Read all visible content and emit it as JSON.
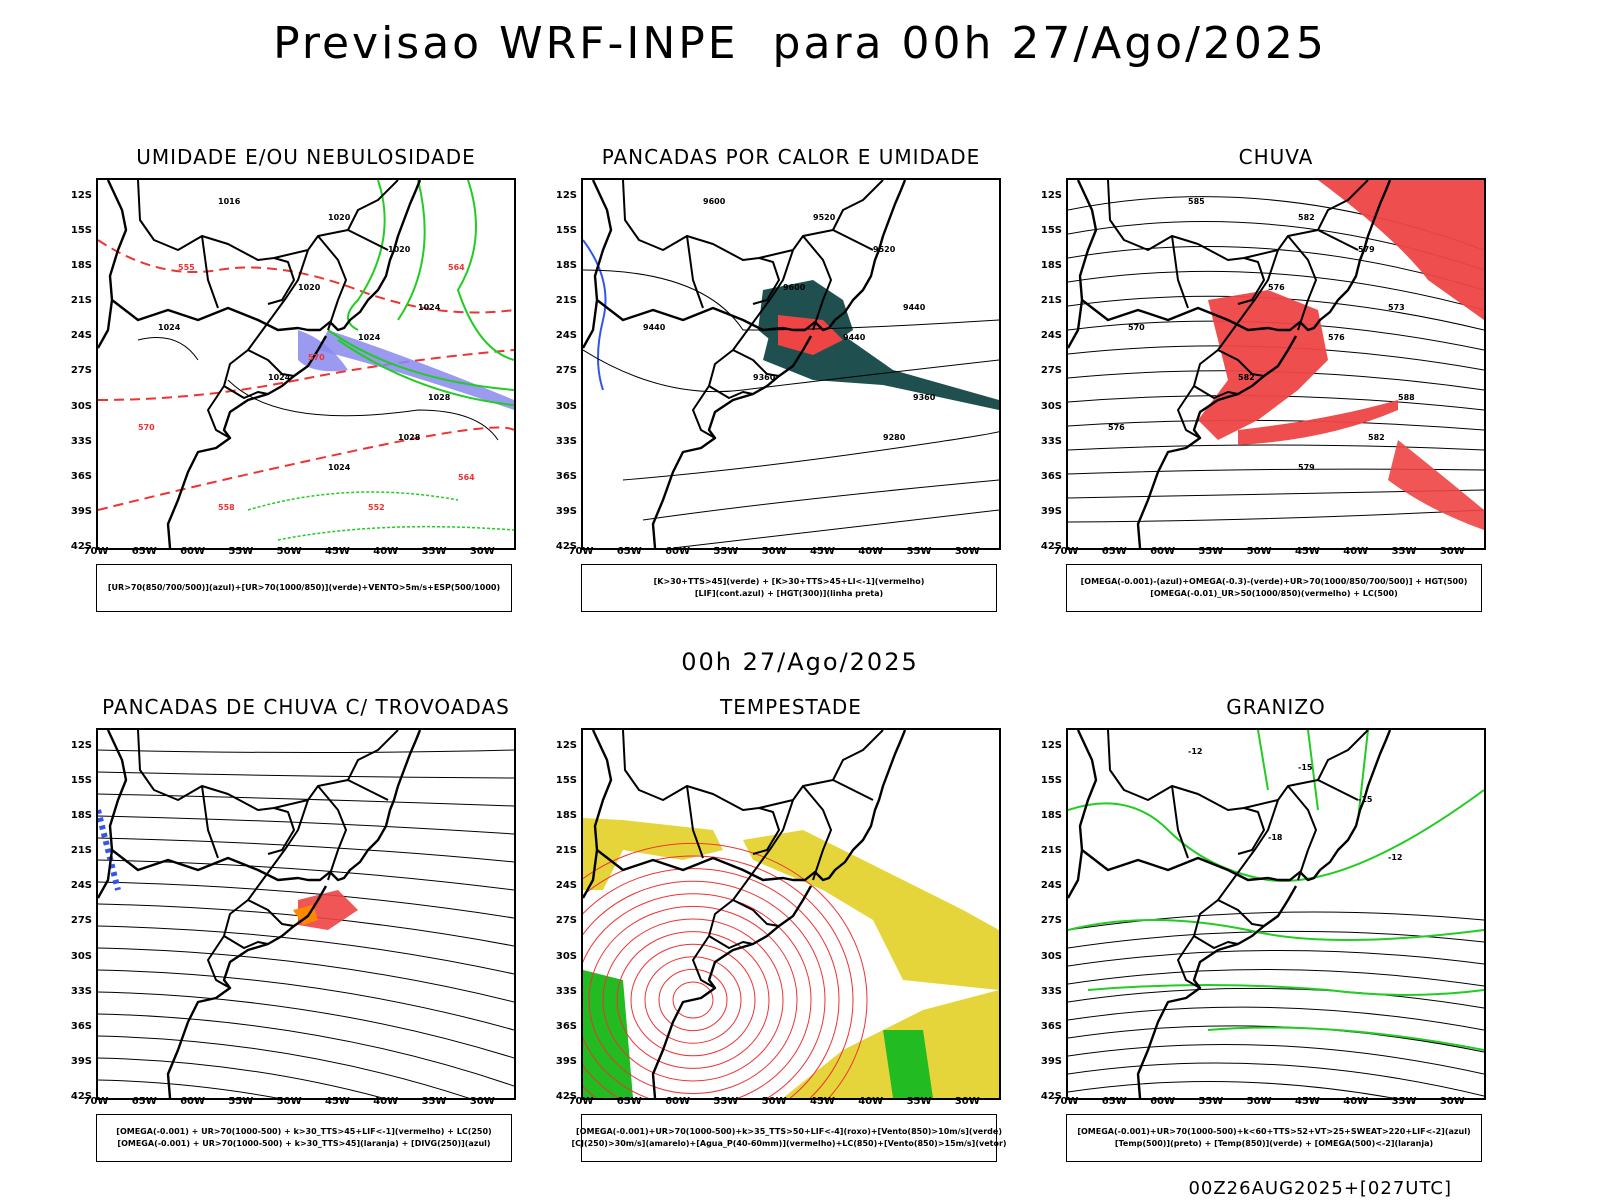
{
  "header": {
    "title": "Previsao WRF-INPE  para 00h 27/Ago/2025",
    "middle_label": "00h 27/Ago/2025",
    "footer": "00Z26AUG2025+[027UTC]"
  },
  "axes": {
    "lat_labels": [
      "12S",
      "15S",
      "18S",
      "21S",
      "24S",
      "27S",
      "30S",
      "33S",
      "36S",
      "39S",
      "42S"
    ],
    "lon_labels": [
      "70W",
      "65W",
      "60W",
      "55W",
      "50W",
      "45W",
      "40W",
      "35W",
      "30W"
    ]
  },
  "panels": [
    {
      "title": "UMIDADE E/OU NEBULOSIDADE",
      "legend": [
        "[UR>70(850/700/500)](azul)+[UR>70(1000/850)](verde)+VENTO>5m/s+ESP(500/1000)"
      ],
      "labels": [
        "1016",
        "1020",
        "1020",
        "1020",
        "1024",
        "1024",
        "1024",
        "1024",
        "1028",
        "1028",
        "1024",
        "570",
        "564",
        "558",
        "552",
        "555",
        "570",
        "564"
      ]
    },
    {
      "title": "PANCADAS POR CALOR E UMIDADE",
      "legend": [
        "[K>30+TTS>45](verde) + [K>30+TTS>45+LI<-1](vermelho)",
        "[LIF](cont.azul) + [HGT(300)](linha preta)"
      ],
      "labels": [
        "9600",
        "9520",
        "9520",
        "9600",
        "9440",
        "9440",
        "9440",
        "9360",
        "9360",
        "9280"
      ]
    },
    {
      "title": "CHUVA",
      "legend": [
        "[OMEGA(-0.001)-(azul)+OMEGA(-0.3)-(verde)+UR>70(1000/850/700/500)] + HGT(500)",
        "[OMEGA(-0.01)_UR>50(1000/850)(vermelho) + LC(500)"
      ],
      "labels": [
        "585",
        "582",
        "579",
        "576",
        "573",
        "570",
        "576",
        "582",
        "588",
        "582",
        "579",
        "576"
      ]
    },
    {
      "title": "PANCADAS DE CHUVA C/ TROVOADAS",
      "legend": [
        "[OMEGA(-0.001) + UR>70(1000-500) + k>30_TTS>45+LIF<-1](vermelho) + LC(250)",
        "[OMEGA(-0.001) + UR>70(1000-500) + k>30_TTS>45](laranja) + [DIVG(250)](azul)"
      ],
      "labels": []
    },
    {
      "title": "TEMPESTADE",
      "legend": [
        "[OMEGA(-0.001)+UR>70(1000-500)+k>35_TTS>50+LIF<-4](roxo)+[Vento(850)>10m/s](verde)",
        "[CJ(250)>30m/s](amarelo)+[Agua_P(40-60mm)](vermelho)+LC(850)+[Vento(850)>15m/s](vetor)"
      ],
      "labels": []
    },
    {
      "title": "GRANIZO",
      "legend": [
        "[OMEGA(-0.001)+UR>70(1000-500)+k<60+TTS>52+VT>25+SWEAT>220+LIF<-2](azul)",
        "[Temp(500)](preto) + [Temp(850)](verde) + [OMEGA(500)<-2](laranja)"
      ],
      "labels": [
        "-12",
        "-15",
        "-15",
        "-18",
        "-12"
      ]
    }
  ],
  "colors": {
    "green_contour": "#22cc22",
    "red_dashed": "#ee3333",
    "blue_fill": "#8888ee",
    "dark_teal": "#1f4f4f",
    "red_fill": "#ee4444",
    "yellow_fill": "#e6d53a",
    "orange": "#ff8800",
    "blue": "#3355ee"
  }
}
